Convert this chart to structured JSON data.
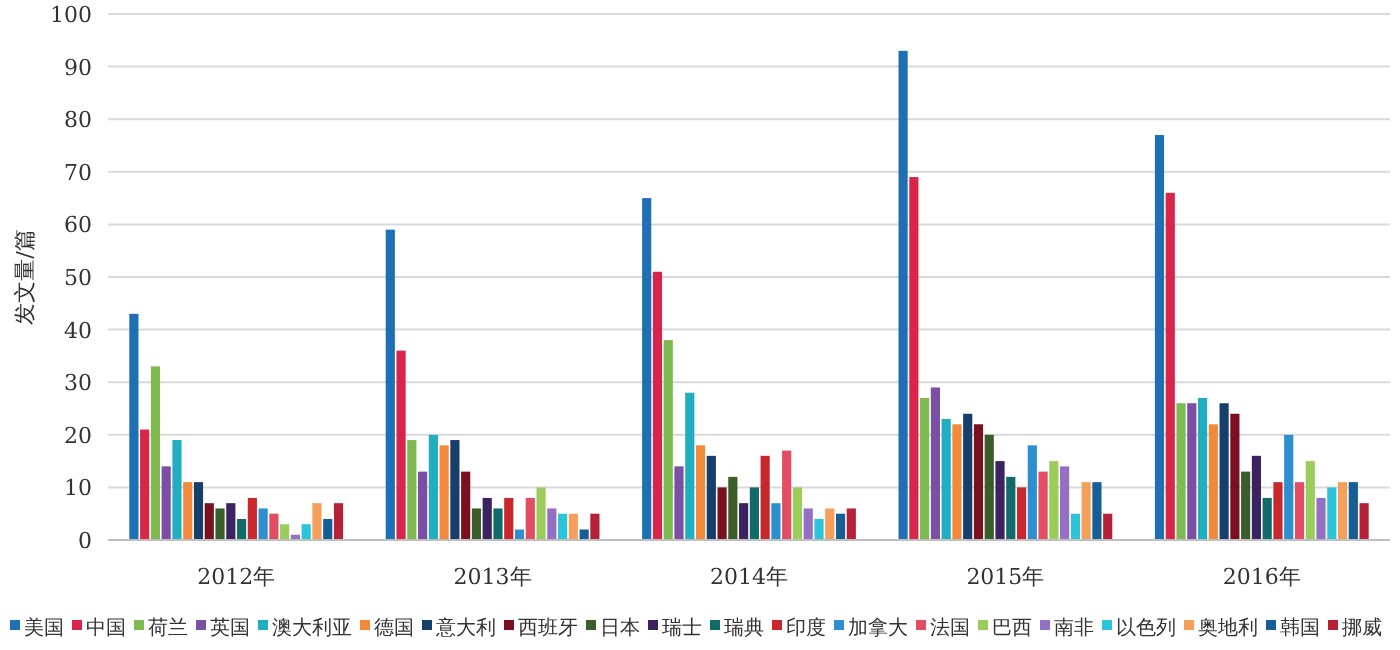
{
  "chart_data": {
    "type": "bar",
    "ylabel": "发文量/篇",
    "categories": [
      "2012年",
      "2013年",
      "2014年",
      "2015年",
      "2016年"
    ],
    "ylim": [
      0,
      100
    ],
    "yticks": [
      0,
      10,
      20,
      30,
      40,
      50,
      60,
      70,
      80,
      90,
      100
    ],
    "grid": "y",
    "legend": "bottom",
    "series": [
      {
        "name": "美国",
        "color": "#1f6fb5",
        "values": [
          43,
          59,
          65,
          93,
          77
        ]
      },
      {
        "name": "中国",
        "color": "#d9254a",
        "values": [
          21,
          36,
          51,
          69,
          66
        ]
      },
      {
        "name": "荷兰",
        "color": "#7dba4f",
        "values": [
          33,
          19,
          38,
          27,
          26
        ]
      },
      {
        "name": "英国",
        "color": "#7b4fa3",
        "values": [
          14,
          13,
          14,
          29,
          26
        ]
      },
      {
        "name": "澳大利亚",
        "color": "#20aec0",
        "values": [
          19,
          20,
          28,
          23,
          27
        ]
      },
      {
        "name": "德国",
        "color": "#f08a3a",
        "values": [
          11,
          18,
          18,
          22,
          22
        ]
      },
      {
        "name": "意大利",
        "color": "#163f6b",
        "values": [
          11,
          19,
          16,
          24,
          26
        ]
      },
      {
        "name": "西班牙",
        "color": "#7a1020",
        "values": [
          7,
          13,
          10,
          22,
          24
        ]
      },
      {
        "name": "日本",
        "color": "#3a5e2a",
        "values": [
          6,
          6,
          12,
          20,
          13
        ]
      },
      {
        "name": "瑞士",
        "color": "#3a2360",
        "values": [
          7,
          8,
          7,
          15,
          16
        ]
      },
      {
        "name": "瑞典",
        "color": "#126b6b",
        "values": [
          4,
          6,
          10,
          12,
          8
        ]
      },
      {
        "name": "印度",
        "color": "#c8282c",
        "values": [
          8,
          8,
          16,
          10,
          11
        ]
      },
      {
        "name": "加拿大",
        "color": "#2e8fd0",
        "values": [
          6,
          2,
          7,
          18,
          20
        ]
      },
      {
        "name": "法国",
        "color": "#e24d64",
        "values": [
          5,
          8,
          17,
          13,
          11
        ]
      },
      {
        "name": "巴西",
        "color": "#9acd5a",
        "values": [
          3,
          10,
          10,
          15,
          15
        ]
      },
      {
        "name": "南非",
        "color": "#9370c4",
        "values": [
          1,
          6,
          6,
          14,
          8
        ]
      },
      {
        "name": "以色列",
        "color": "#2cc4d8",
        "values": [
          3,
          5,
          4,
          5,
          10
        ]
      },
      {
        "name": "奥地利",
        "color": "#f5a05a",
        "values": [
          7,
          5,
          6,
          11,
          11
        ]
      },
      {
        "name": "韩国",
        "color": "#175e96",
        "values": [
          4,
          2,
          5,
          11,
          11
        ]
      },
      {
        "name": "挪威",
        "color": "#b52136",
        "values": [
          7,
          5,
          6,
          5,
          7
        ]
      }
    ]
  }
}
